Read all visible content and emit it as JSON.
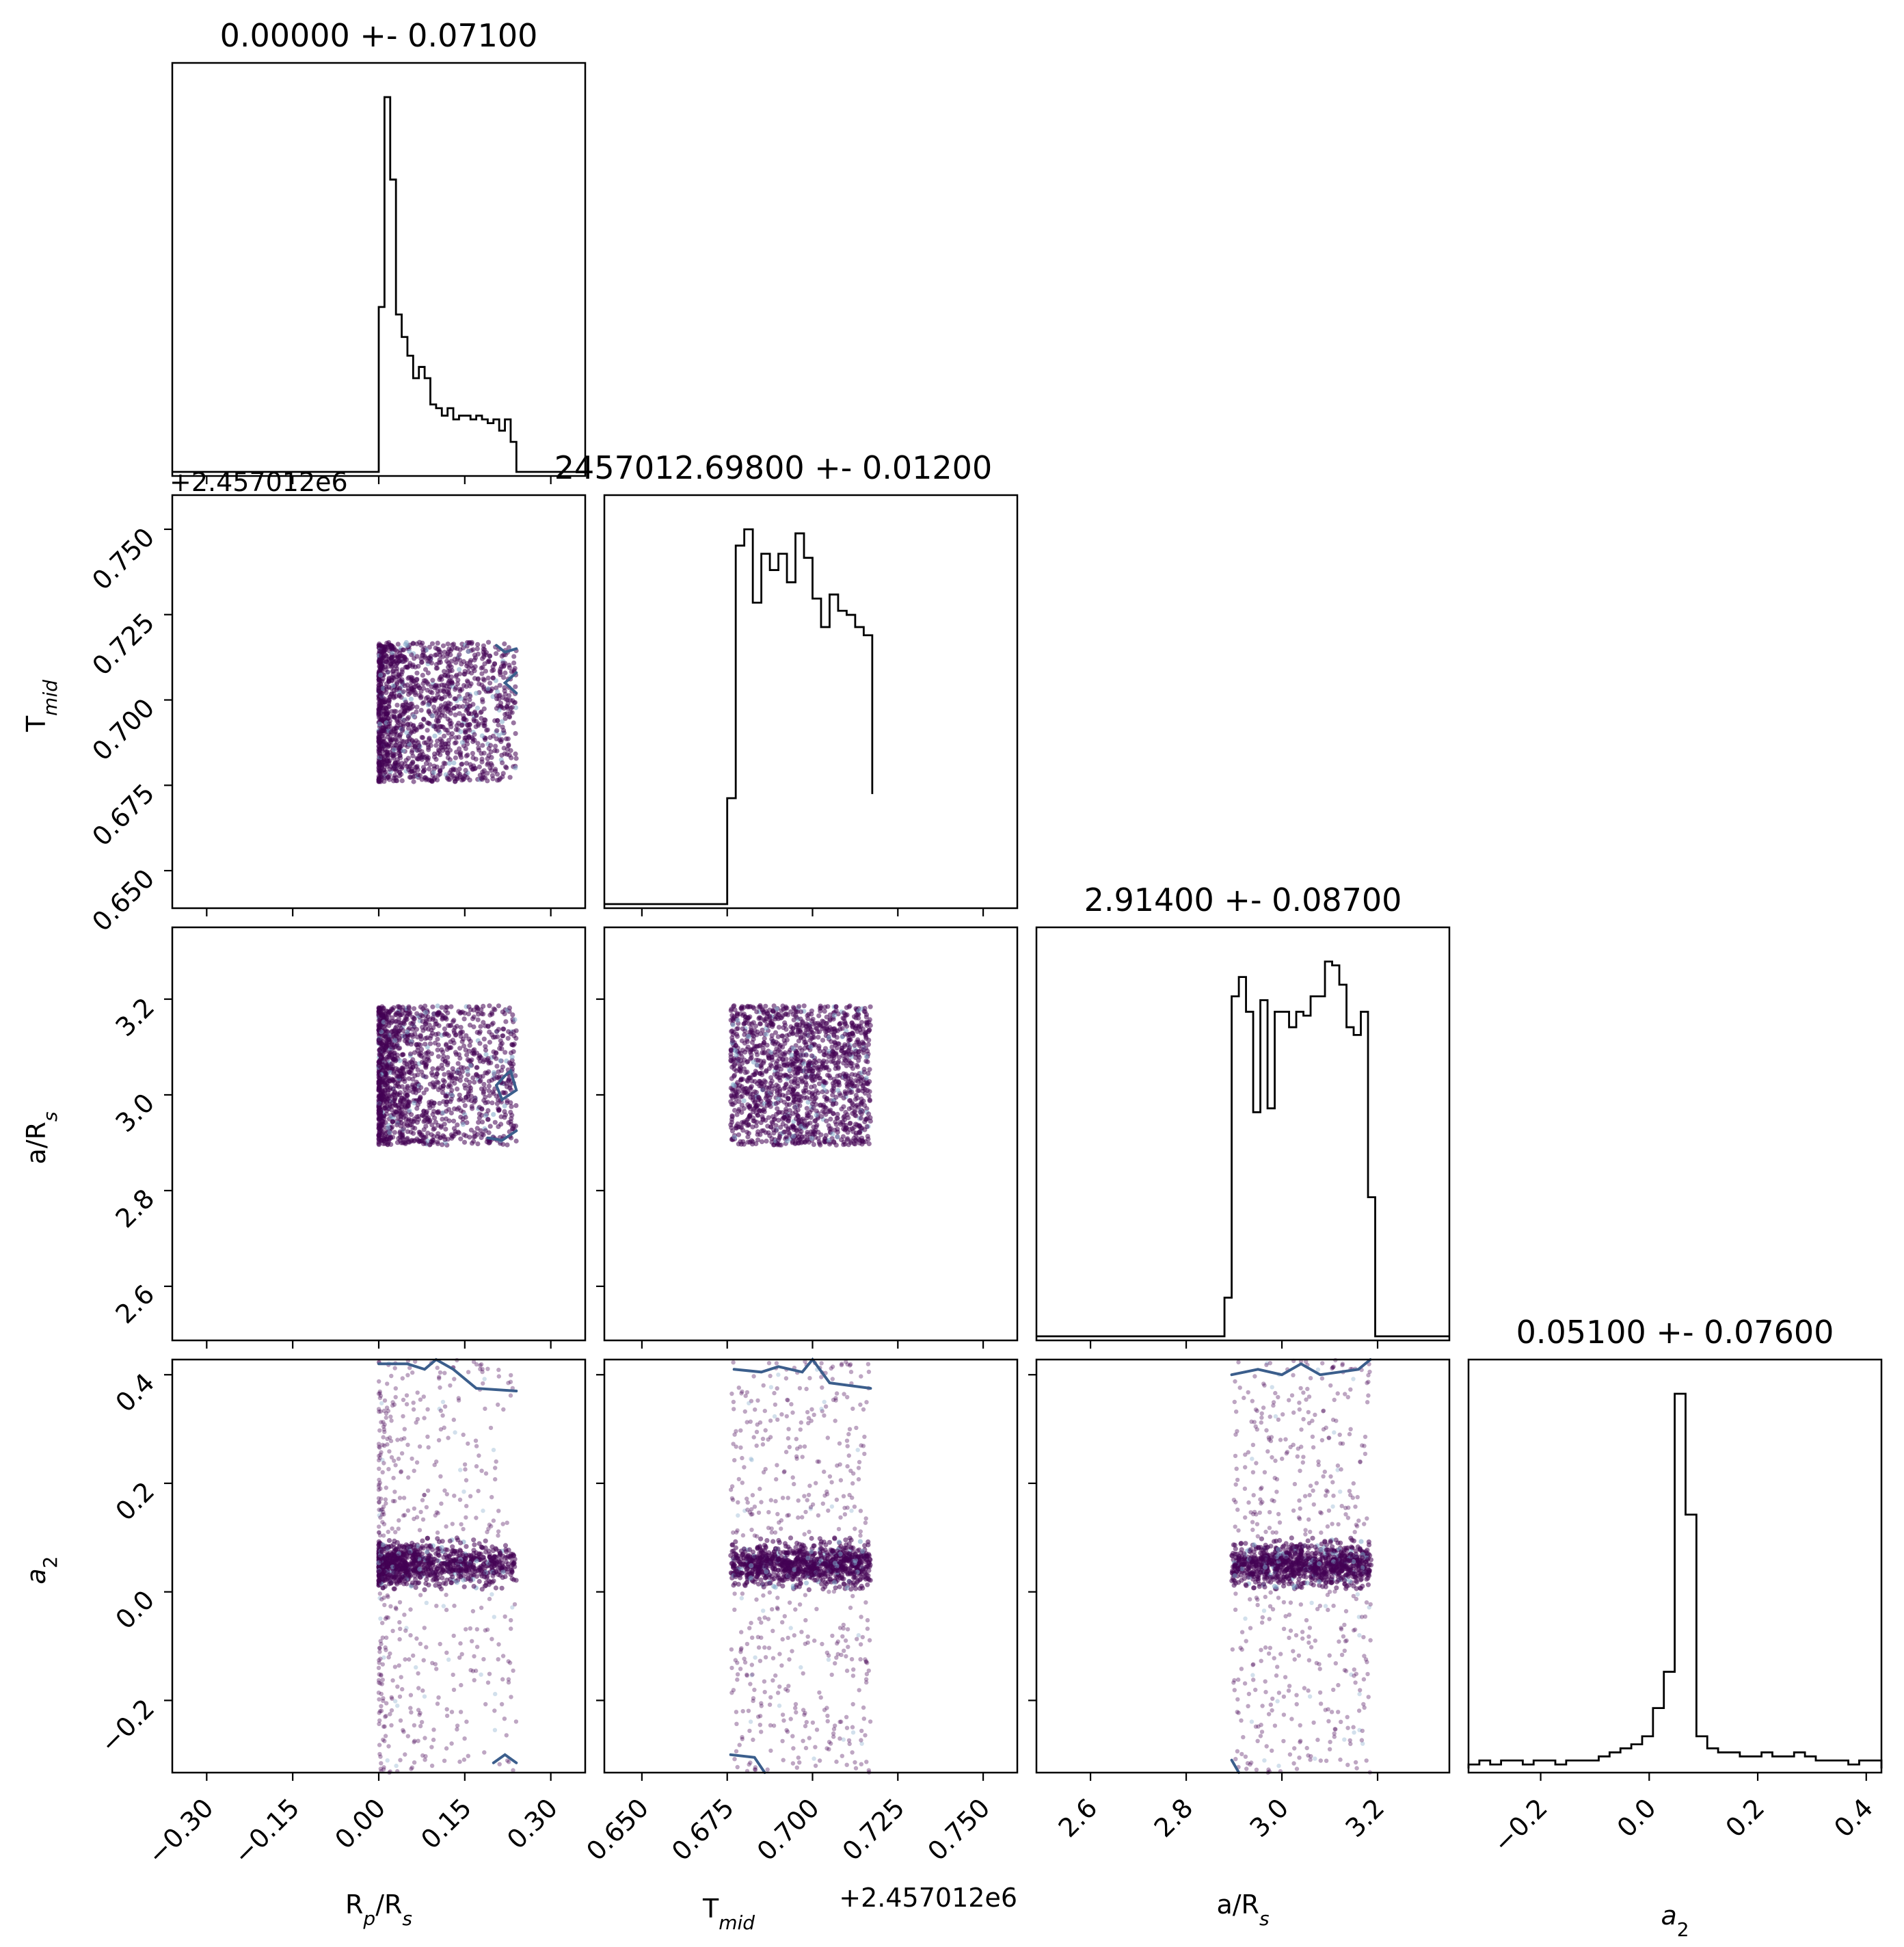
{
  "chart_data": {
    "type": "corner",
    "parameters": [
      {
        "label": "R",
        "sub": "p",
        "label2": "/R",
        "sub2": "s",
        "title": "0.00000 +- 0.07100",
        "range": [
          -0.36,
          0.36
        ],
        "ticks": [
          -0.3,
          -0.15,
          0.0,
          0.15,
          0.3
        ],
        "tick_labels": [
          "−0.30",
          "−0.15",
          "0.00",
          "0.15",
          "0.30"
        ]
      },
      {
        "label": "T",
        "sub": "mid",
        "label2": "",
        "sub2": "",
        "title": "2457012.69800 +- 0.01200",
        "range": [
          0.639,
          0.76
        ],
        "ticks": [
          0.65,
          0.675,
          0.7,
          0.725,
          0.75
        ],
        "tick_labels": [
          "0.650",
          "0.675",
          "0.700",
          "0.725",
          "0.750"
        ],
        "offset": "+2.457012e6"
      },
      {
        "label": "a/R",
        "sub": "s",
        "label2": "",
        "sub2": "",
        "title": "2.91400 +- 0.08700",
        "range": [
          2.487,
          3.35
        ],
        "ticks": [
          2.6,
          2.8,
          3.0,
          3.2
        ],
        "tick_labels": [
          "2.6",
          "2.8",
          "3.0",
          "3.2"
        ]
      },
      {
        "label": "",
        "sub": "",
        "label2": "",
        "sub2": "",
        "math": "a",
        "mathsub": "2",
        "title": "0.05100 +- 0.07600",
        "range": [
          -0.333,
          0.428
        ],
        "ticks": [
          -0.2,
          0.0,
          0.2,
          0.4
        ],
        "tick_labels": [
          "−0.2",
          "0.0",
          "0.2",
          "0.4"
        ]
      }
    ],
    "histograms": [
      {
        "param": 0,
        "bins": [
          0.0,
          0.01,
          0.02,
          0.03,
          0.04,
          0.05,
          0.06,
          0.07,
          0.08,
          0.09,
          0.1,
          0.11,
          0.12,
          0.13,
          0.14,
          0.15,
          0.16,
          0.17,
          0.18,
          0.19,
          0.2,
          0.21,
          0.22,
          0.23,
          0.24
        ],
        "counts": [
          0.44,
          1.0,
          0.78,
          0.42,
          0.36,
          0.31,
          0.25,
          0.28,
          0.25,
          0.18,
          0.17,
          0.15,
          0.17,
          0.14,
          0.15,
          0.15,
          0.14,
          0.15,
          0.14,
          0.13,
          0.14,
          0.11,
          0.14,
          0.08
        ]
      },
      {
        "param": 1,
        "bins": [
          0.675,
          0.6775,
          0.68,
          0.6825,
          0.685,
          0.6875,
          0.69,
          0.6925,
          0.695,
          0.6975,
          0.7,
          0.7025,
          0.705,
          0.7075,
          0.71,
          0.7125,
          0.715,
          0.7175
        ],
        "counts": [
          0.26,
          0.88,
          0.92,
          0.74,
          0.86,
          0.82,
          0.86,
          0.79,
          0.91,
          0.85,
          0.75,
          0.68,
          0.76,
          0.72,
          0.71,
          0.68,
          0.66,
          0.27
        ]
      },
      {
        "param": 2,
        "bins": [
          2.88,
          2.895,
          2.91,
          2.925,
          2.94,
          2.955,
          2.97,
          2.985,
          3.0,
          3.015,
          3.03,
          3.045,
          3.06,
          3.075,
          3.09,
          3.105,
          3.12,
          3.135,
          3.15,
          3.165,
          3.18,
          3.195
        ],
        "counts": [
          0.1,
          0.88,
          0.93,
          0.84,
          0.58,
          0.87,
          0.59,
          0.84,
          0.84,
          0.8,
          0.84,
          0.83,
          0.88,
          0.88,
          0.97,
          0.96,
          0.91,
          0.8,
          0.78,
          0.84,
          0.36
        ]
      },
      {
        "param": 3,
        "bins": [
          -0.333,
          -0.313,
          -0.293,
          -0.273,
          -0.253,
          -0.233,
          -0.213,
          -0.193,
          -0.173,
          -0.153,
          -0.133,
          -0.113,
          -0.093,
          -0.073,
          -0.053,
          -0.033,
          -0.013,
          0.007,
          0.027,
          0.047,
          0.067,
          0.087,
          0.107,
          0.127,
          0.147,
          0.167,
          0.187,
          0.207,
          0.227,
          0.247,
          0.267,
          0.287,
          0.307,
          0.327,
          0.347,
          0.367,
          0.387,
          0.407,
          0.428
        ],
        "counts": [
          0.01,
          0.02,
          0.01,
          0.02,
          0.02,
          0.01,
          0.02,
          0.02,
          0.01,
          0.02,
          0.02,
          0.02,
          0.03,
          0.04,
          0.05,
          0.06,
          0.08,
          0.15,
          0.24,
          0.93,
          0.63,
          0.08,
          0.05,
          0.04,
          0.04,
          0.03,
          0.03,
          0.04,
          0.03,
          0.03,
          0.04,
          0.03,
          0.02,
          0.02,
          0.02,
          0.01,
          0.02,
          0.02
        ]
      }
    ],
    "scatter_extent": [
      [
        0.0,
        0.24
      ],
      [
        0.676,
        0.717
      ],
      [
        2.895,
        3.187
      ],
      [
        -0.333,
        0.428
      ]
    ],
    "a2_core": [
      0.051,
      0.018
    ],
    "point_color": "#440154",
    "contour_color": "#3b5e8c",
    "line_color": "#000000"
  }
}
